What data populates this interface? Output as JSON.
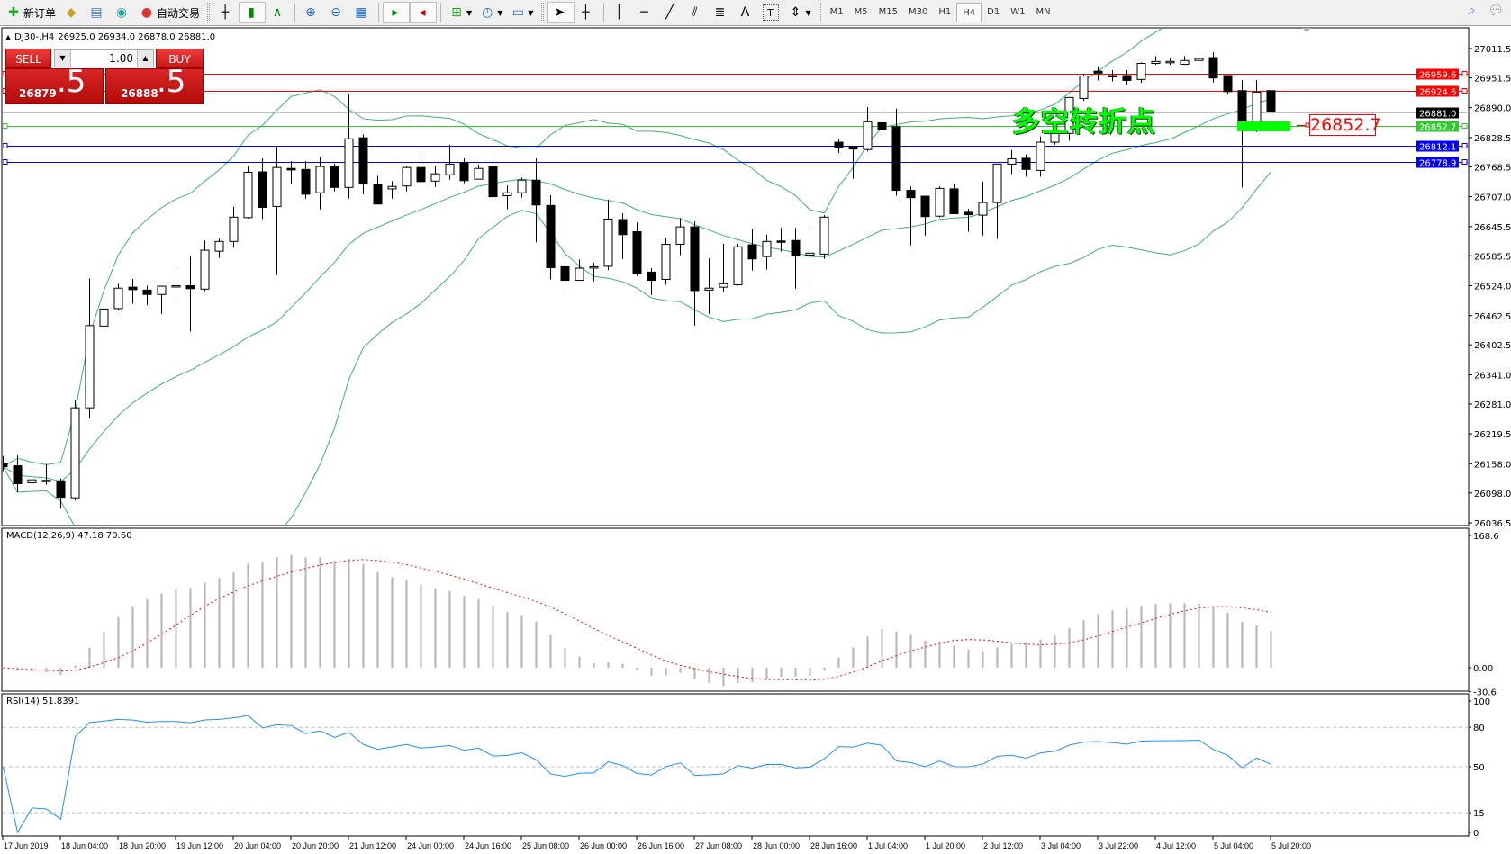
{
  "toolbar": {
    "new_order": "新订单",
    "auto_trading": "自动交易",
    "timeframes": [
      "M1",
      "M5",
      "M15",
      "M30",
      "H1",
      "H4",
      "D1",
      "W1",
      "MN"
    ],
    "active_timeframe": "H4",
    "text_tool": "A",
    "label_tool": "T"
  },
  "chart_header": {
    "symbol": "DJ30-,H4",
    "ohlc": "26925.0 26934.0 26878.0 26881.0"
  },
  "trade_panel": {
    "sell_label": "SELL",
    "buy_label": "BUY",
    "lot": "1.00",
    "sell_price_main": "26879",
    "sell_price_frac": ".5",
    "buy_price_main": "26888",
    "buy_price_frac": ".5"
  },
  "annotation": {
    "text": "多空转折点",
    "price_label": "26852.7",
    "color": "#00ff00"
  },
  "colors": {
    "bull_body": "#ffffff",
    "bear_body": "#000000",
    "bands": "#3cb371",
    "macd_hist": "#b4b4b4",
    "macd_signal": "#ff0000",
    "rsi": "#1e90ff"
  },
  "chart_data": {
    "type": "candlestick",
    "symbol": "DJ30-",
    "timeframe": "H4",
    "price_axis_ticks": [
      "27011.5",
      "26951.5",
      "26890.0",
      "26828.5",
      "26768.5",
      "26707.0",
      "26645.5",
      "26585.5",
      "26524.0",
      "26462.5",
      "26402.5",
      "26341.0",
      "26281.0",
      "26219.5",
      "26158.0",
      "26098.0",
      "26036.5"
    ],
    "time_axis_labels": [
      "17 Jun 2019",
      "18 Jun 04:00",
      "18 Jun 20:00",
      "19 Jun 12:00",
      "20 Jun 04:00",
      "20 Jun 20:00",
      "21 Jun 12:00",
      "24 Jun 00:00",
      "24 Jun 16:00",
      "25 Jun 08:00",
      "26 Jun 00:00",
      "26 Jun 16:00",
      "27 Jun 08:00",
      "28 Jun 00:00",
      "28 Jun 16:00",
      "1 Jul 04:00",
      "1 Jul 20:00",
      "2 Jul 12:00",
      "3 Jul 04:00",
      "3 Jul 22:00",
      "4 Jul 12:00",
      "5 Jul 04:00",
      "5 Jul 20:00"
    ],
    "candles_ohlc": [
      [
        26159,
        26174,
        26143,
        26152
      ],
      [
        26154,
        26175,
        26100,
        26117
      ],
      [
        26119,
        26148,
        26117,
        26125
      ],
      [
        26124,
        26158,
        26115,
        26123
      ],
      [
        26123,
        26128,
        26066,
        26089
      ],
      [
        26088,
        26290,
        26083,
        26273
      ],
      [
        26273,
        26539,
        26252,
        26442
      ],
      [
        26441,
        26513,
        26416,
        26476
      ],
      [
        26477,
        26528,
        26473,
        26519
      ],
      [
        26521,
        26538,
        26487,
        26516
      ],
      [
        26515,
        26524,
        26484,
        26506
      ],
      [
        26506,
        26524,
        26466,
        26523
      ],
      [
        26522,
        26560,
        26500,
        26524
      ],
      [
        26524,
        26584,
        26430,
        26518
      ],
      [
        26517,
        26617,
        26513,
        26597
      ],
      [
        26595,
        26621,
        26581,
        26615
      ],
      [
        26615,
        26686,
        26603,
        26665
      ],
      [
        26664,
        26769,
        26662,
        26757
      ],
      [
        26758,
        26786,
        26661,
        26685
      ],
      [
        26687,
        26811,
        26546,
        26767
      ],
      [
        26765,
        26780,
        26733,
        26762
      ],
      [
        26763,
        26780,
        26703,
        26712
      ],
      [
        26715,
        26788,
        26681,
        26769
      ],
      [
        26770,
        26775,
        26718,
        26726
      ],
      [
        26726,
        26919,
        26703,
        26826
      ],
      [
        26828,
        26835,
        26712,
        26733
      ],
      [
        26732,
        26750,
        26691,
        26692
      ],
      [
        26723,
        26739,
        26703,
        26728
      ],
      [
        26729,
        26771,
        26718,
        26767
      ],
      [
        26767,
        26788,
        26737,
        26738
      ],
      [
        26739,
        26771,
        26727,
        26754
      ],
      [
        26752,
        26814,
        26742,
        26774
      ],
      [
        26777,
        26786,
        26735,
        26740
      ],
      [
        26743,
        26773,
        26743,
        26765
      ],
      [
        26769,
        26824,
        26703,
        26707
      ],
      [
        26709,
        26730,
        26681,
        26715
      ],
      [
        26715,
        26746,
        26705,
        26741
      ],
      [
        26741,
        26786,
        26613,
        26690
      ],
      [
        26689,
        26710,
        26537,
        26561
      ],
      [
        26563,
        26580,
        26505,
        26535
      ],
      [
        26535,
        26578,
        26535,
        26560
      ],
      [
        26561,
        26571,
        26533,
        26563
      ],
      [
        26564,
        26701,
        26556,
        26661
      ],
      [
        26660,
        26673,
        26579,
        26629
      ],
      [
        26635,
        26654,
        26544,
        26550
      ],
      [
        26552,
        26560,
        26505,
        26535
      ],
      [
        26537,
        26621,
        26526,
        26609
      ],
      [
        26609,
        26663,
        26587,
        26645
      ],
      [
        26645,
        26656,
        26442,
        26514
      ],
      [
        26515,
        26580,
        26466,
        26519
      ],
      [
        26521,
        26610,
        26511,
        26528
      ],
      [
        26526,
        26610,
        26524,
        26604
      ],
      [
        26608,
        26640,
        26555,
        26579
      ],
      [
        26584,
        26629,
        26557,
        26615
      ],
      [
        26616,
        26643,
        26594,
        26614
      ],
      [
        26617,
        26643,
        26518,
        26585
      ],
      [
        26587,
        26640,
        26526,
        26591
      ],
      [
        26589,
        26669,
        26579,
        26665
      ],
      [
        26819,
        26825,
        26797,
        26809
      ],
      [
        26810,
        26810,
        26744,
        26805
      ],
      [
        26804,
        26891,
        26800,
        26861
      ],
      [
        26859,
        26886,
        26834,
        26846
      ],
      [
        26851,
        26888,
        26709,
        26720
      ],
      [
        26720,
        26728,
        26607,
        26705
      ],
      [
        26708,
        26708,
        26627,
        26666
      ],
      [
        26667,
        26728,
        26664,
        26724
      ],
      [
        26723,
        26734,
        26672,
        26672
      ],
      [
        26675,
        26682,
        26635,
        26670
      ],
      [
        26669,
        26738,
        26627,
        26695
      ],
      [
        26695,
        26774,
        26620,
        26774
      ],
      [
        26774,
        26803,
        26754,
        26785
      ],
      [
        26786,
        26794,
        26748,
        26763
      ],
      [
        26761,
        26831,
        26748,
        26819
      ],
      [
        26819,
        26843,
        26814,
        26837
      ],
      [
        26837,
        26911,
        26822,
        26911
      ],
      [
        26909,
        26960,
        26904,
        26955
      ],
      [
        26965,
        26975,
        26946,
        26961
      ],
      [
        26956,
        26967,
        26944,
        26954
      ],
      [
        26956,
        26967,
        26937,
        26946
      ],
      [
        26948,
        26983,
        26941,
        26981
      ],
      [
        26981,
        26996,
        26978,
        26985
      ],
      [
        26984,
        26993,
        26978,
        26985
      ],
      [
        26979,
        26996,
        26979,
        26987
      ],
      [
        26987,
        26999,
        26971,
        26991
      ],
      [
        26993,
        27004,
        26942,
        26951
      ],
      [
        26956,
        26956,
        26918,
        26923
      ],
      [
        26925,
        26947,
        26726,
        26852
      ],
      [
        26852,
        26947,
        26840,
        26922
      ],
      [
        26925,
        26934,
        26878,
        26881
      ]
    ],
    "horizontal_lines": [
      {
        "price": "26959.6",
        "color": "#ff0000"
      },
      {
        "price": "26924.6",
        "color": "#ff0000"
      },
      {
        "price": "26881.0",
        "color": "#000000",
        "line_color": "#c0c0c0"
      },
      {
        "price": "26852.7",
        "color": "#32c832"
      },
      {
        "price": "26812.1",
        "color": "#0000ff"
      },
      {
        "price": "26778.9",
        "color": "#0000ff"
      }
    ],
    "indicators": {
      "bollinger_bands": {
        "period": 20,
        "deviation": 2
      },
      "macd": {
        "label": "MACD(12,26,9) 47.18 70.60",
        "axis_ticks": [
          "168.6",
          "0.00",
          "-30.6"
        ]
      },
      "rsi": {
        "label": "RSI(14) 51.8391",
        "axis_ticks": [
          "100",
          "80",
          "50",
          "15",
          "0"
        ],
        "levels": [
          80,
          50,
          15
        ]
      }
    }
  }
}
